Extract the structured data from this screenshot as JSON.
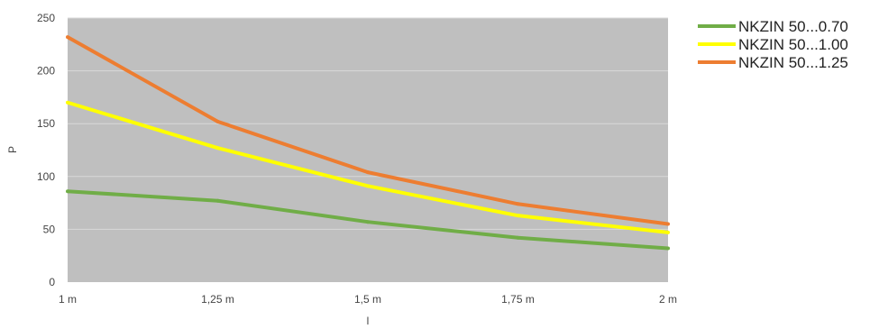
{
  "chart_data": {
    "type": "line",
    "categories": [
      "1 m",
      "1,25 m",
      "1,5 m",
      "1,75 m",
      "2 m"
    ],
    "xlabel": "l",
    "ylabel": "P",
    "ylim": [
      0,
      250
    ],
    "yticks": [
      0,
      50,
      100,
      150,
      200,
      250
    ],
    "grid": true,
    "legend_position": "right",
    "plot_background": "#bfbfbf",
    "series": [
      {
        "name": "NKZIN 50...0.70",
        "color": "#70ad47",
        "values": [
          86,
          77,
          57,
          42,
          32
        ]
      },
      {
        "name": "NKZIN 50...1.00",
        "color": "#ffff00",
        "values": [
          170,
          127,
          91,
          63,
          47
        ]
      },
      {
        "name": "NKZIN 50...1.25",
        "color": "#ed7d31",
        "values": [
          232,
          152,
          104,
          74,
          55
        ]
      }
    ]
  }
}
